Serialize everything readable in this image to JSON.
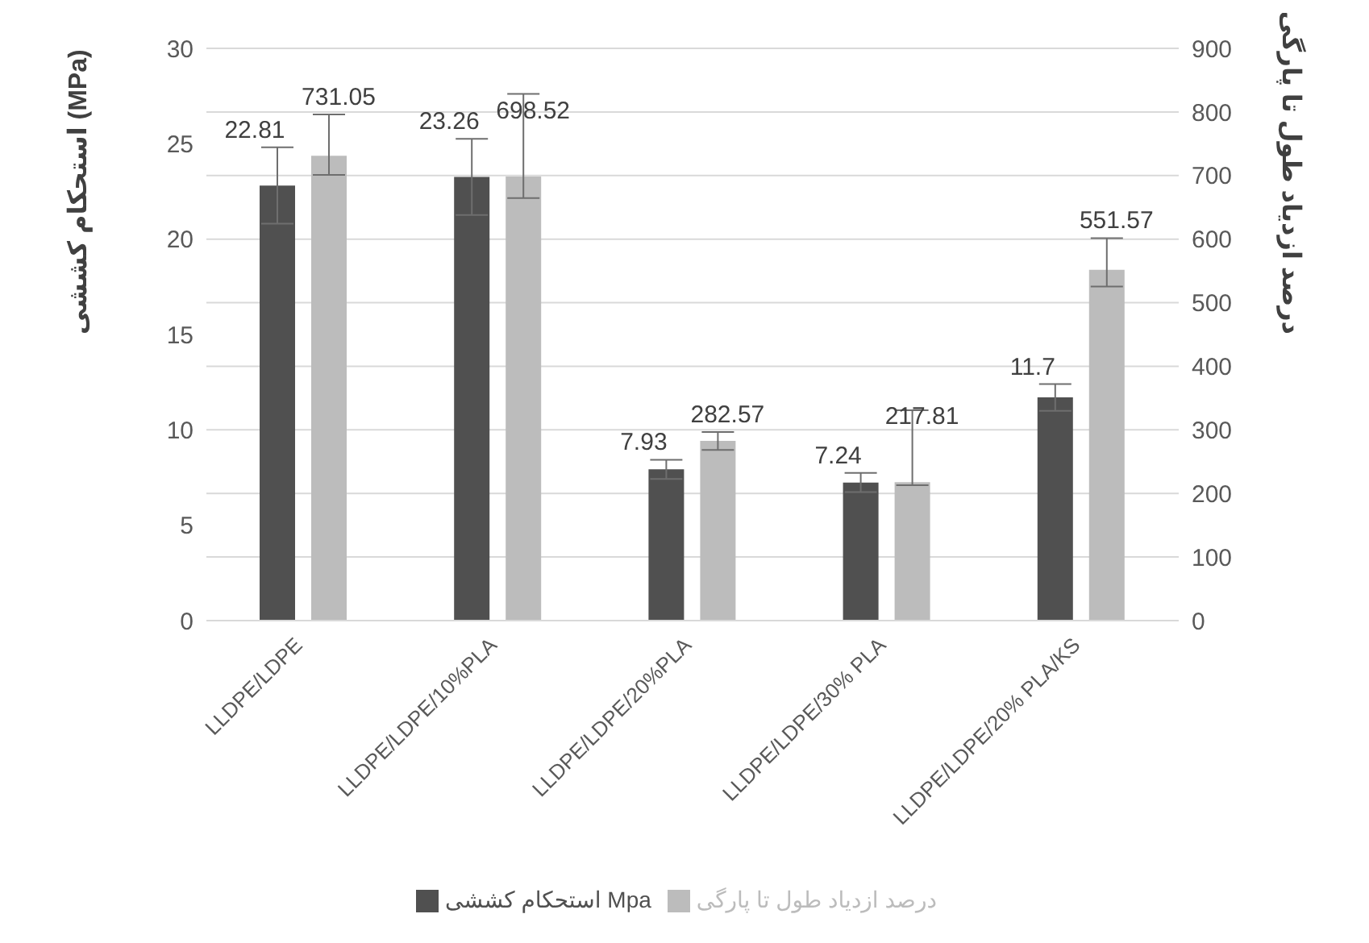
{
  "chart_data": {
    "type": "bar",
    "categories": [
      "LLDPE/LDPE",
      "LLDPE/LDPE/10%PLA",
      "LLDPE/LDPE/20%PLA",
      "LLDPE/LDPE/30% PLA",
      "LLDPE/LDPE/20% PLA/KS"
    ],
    "series": [
      {
        "name": "استحکام کششی Mpa",
        "color": "#505050",
        "values": [
          22.81,
          23.26,
          7.93,
          7.24,
          11.7
        ],
        "errors": [
          2.0,
          2.0,
          0.5,
          0.5,
          0.7
        ]
      },
      {
        "name": "درصد ازدیاد طول تا پارگی",
        "color": "#bcbcbc",
        "axis": "y2",
        "values": [
          731.05,
          698.52,
          282.57,
          217.81,
          551.57
        ],
        "errors": [
          [
            701.05,
            796.05
          ],
          [
            664.52,
            828.52
          ],
          14,
          [
            212.81,
            330.81
          ],
          [
            525.57,
            601.57
          ]
        ]
      }
    ],
    "ylabel": "استحکام کششی (MPa)",
    "y2label": "درصد ازدیاد طول تا پارگی",
    "ylim": [
      0,
      30
    ],
    "yticks": [
      0,
      5,
      10,
      15,
      20,
      25,
      30
    ],
    "y2lim": [
      0,
      900
    ],
    "y2ticks": [
      0,
      100,
      200,
      300,
      400,
      500,
      600,
      700,
      800,
      900
    ],
    "grid": "y",
    "legend": "bottom",
    "data_labels": true
  }
}
